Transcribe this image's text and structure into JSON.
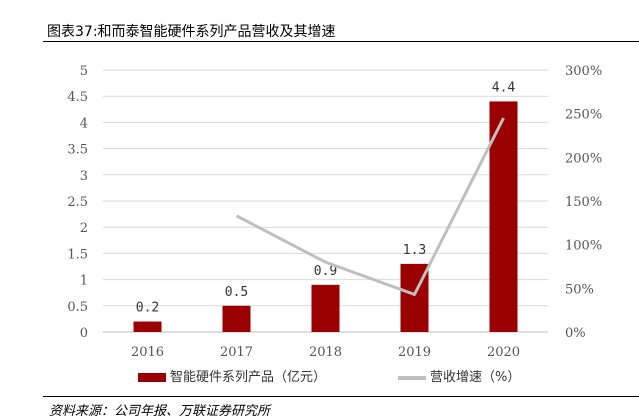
{
  "title": "图表37:和而泰智能硬件系列产品营收及其增速",
  "source": "资料来源：公司年报、万联证券研究所",
  "colors": {
    "bar": "#9b0000",
    "line": "#bfbfbf",
    "grid": "#d9d9d9"
  },
  "chart_data": {
    "type": "bar",
    "categories": [
      "2016",
      "2017",
      "2018",
      "2019",
      "2020"
    ],
    "series": [
      {
        "name": "智能硬件系列产品（亿元）",
        "type": "bar",
        "axis": "left",
        "values": [
          0.2,
          0.5,
          0.9,
          1.3,
          4.4
        ],
        "labels": [
          "0.2",
          "0.5",
          "0.9",
          "1.3",
          "4.4"
        ]
      },
      {
        "name": "营收增速（%）",
        "type": "line",
        "axis": "right",
        "values": [
          null,
          133,
          80,
          43,
          245
        ]
      }
    ],
    "left_axis": {
      "ylim": [
        0,
        5
      ],
      "ticks": [
        "0",
        "0.5",
        "1",
        "1.5",
        "2",
        "2.5",
        "3",
        "3.5",
        "4",
        "4.5",
        "5"
      ]
    },
    "right_axis": {
      "ylim": [
        0,
        300
      ],
      "ticks": [
        "0%",
        "50%",
        "100%",
        "150%",
        "200%",
        "250%",
        "300%"
      ]
    },
    "grid": true,
    "legend_position": "bottom"
  }
}
